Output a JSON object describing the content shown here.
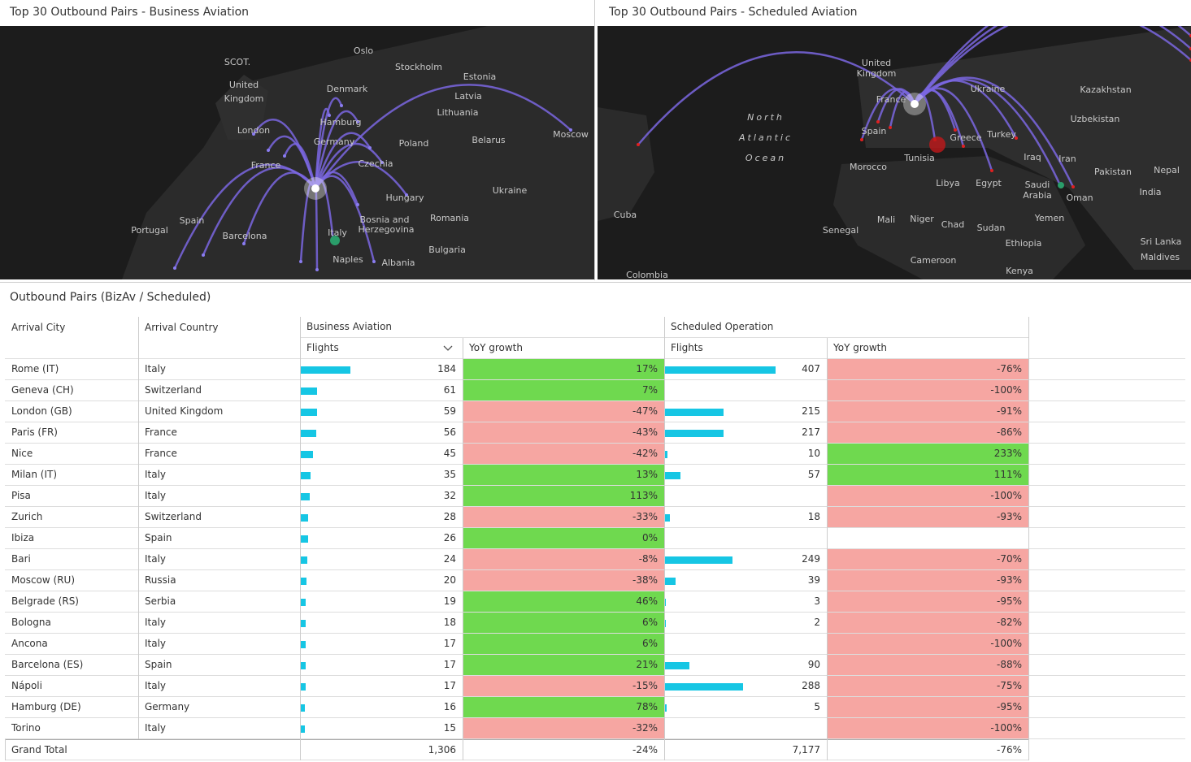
{
  "panels": [
    {
      "title": "Top 30 Outbound Pairs - Business Aviation",
      "labels": [
        "Oslo",
        "Stockholm",
        "Estonia",
        "Latvia",
        "Lithuania",
        "SCOT.",
        "United",
        "Kingdom",
        "Denmark",
        "Hamburg",
        "Germany",
        "Poland",
        "Belarus",
        "Moscow",
        "London",
        "France",
        "Czechia",
        "Hungary",
        "Ukraine",
        "Romania",
        "Spain",
        "Portugal",
        "Barcelona",
        "Italy",
        "Naples",
        "Bosnia and",
        "Herzegovina",
        "Bulgaria",
        "Albania"
      ]
    },
    {
      "title": "Top 30 Outbound Pairs - Scheduled Aviation",
      "labels": [
        "United",
        "Kingdom",
        "France",
        "Spain",
        "Ukraine",
        "Kazakhstan",
        "Uzbekistan",
        "Turkey",
        "Greece",
        "North",
        "Atlantic",
        "Ocean",
        "Morocco",
        "Tunisia",
        "Iraq",
        "Iran",
        "Pakistan",
        "Nepal",
        "India",
        "Saudi",
        "Arabia",
        "Oman",
        "Libya",
        "Egypt",
        "Cuba",
        "Mali",
        "Niger",
        "Chad",
        "Sudan",
        "Senegal",
        "Yemen",
        "Ethiopia",
        "Sri Lanka",
        "Maldives",
        "Cameroon",
        "Kenya",
        "Colombia"
      ]
    }
  ],
  "table": {
    "title": "Outbound Pairs (BizAv / Scheduled)",
    "city_header": "Arrival City",
    "country_header": "Arrival Country",
    "groups": [
      {
        "name": "Business Aviation",
        "columns": [
          "Flights",
          "YoY growth"
        ]
      },
      {
        "name": "Scheduled Operation",
        "columns": [
          "Flights",
          "YoY growth"
        ]
      }
    ],
    "rows": [
      [
        "Rome (IT)",
        "Italy",
        184,
        "17%",
        407,
        "-76%"
      ],
      [
        "Geneva (CH)",
        "Switzerland",
        61,
        "7%",
        null,
        "-100%"
      ],
      [
        "London (GB)",
        "United Kingdom",
        59,
        "-47%",
        215,
        "-91%"
      ],
      [
        "Paris (FR)",
        "France",
        56,
        "-43%",
        217,
        "-86%"
      ],
      [
        "Nice",
        "France",
        45,
        "-42%",
        10,
        "233%"
      ],
      [
        "Milan (IT)",
        "Italy",
        35,
        "13%",
        57,
        "111%"
      ],
      [
        "Pisa",
        "Italy",
        32,
        "113%",
        null,
        "-100%"
      ],
      [
        "Zurich",
        "Switzerland",
        28,
        "-33%",
        18,
        "-93%"
      ],
      [
        "Ibiza",
        "Spain",
        26,
        "0%",
        null,
        null
      ],
      [
        "Bari",
        "Italy",
        24,
        "-8%",
        249,
        "-70%"
      ],
      [
        "Moscow (RU)",
        "Russia",
        20,
        "-38%",
        39,
        "-93%"
      ],
      [
        "Belgrade (RS)",
        "Serbia",
        19,
        "46%",
        3,
        "-95%"
      ],
      [
        "Bologna",
        "Italy",
        18,
        "6%",
        2,
        "-82%"
      ],
      [
        "Ancona",
        "Italy",
        17,
        "6%",
        null,
        "-100%"
      ],
      [
        "Barcelona (ES)",
        "Spain",
        17,
        "21%",
        90,
        "-88%"
      ],
      [
        "Nápoli",
        "Italy",
        17,
        "-15%",
        288,
        "-75%"
      ],
      [
        "Hamburg (DE)",
        "Germany",
        16,
        "78%",
        5,
        "-95%"
      ],
      [
        "Torino",
        "Italy",
        15,
        "-32%",
        null,
        "-100%"
      ]
    ],
    "total": [
      "Grand Total",
      "1,306",
      "-24%",
      "7,177",
      "-76%"
    ]
  }
}
